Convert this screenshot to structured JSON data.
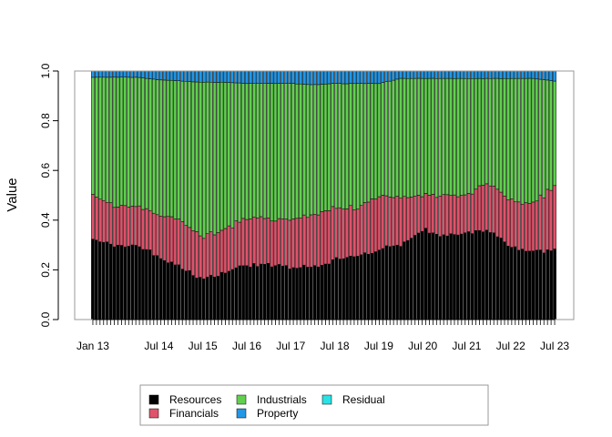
{
  "chart_data": {
    "type": "bar",
    "stacked": true,
    "ylabel": "Value",
    "ylim": [
      0,
      1
    ],
    "yticks": [
      "0.0",
      "0.2",
      "0.4",
      "0.6",
      "0.8",
      "1.0"
    ],
    "x_tick_labels": [
      "Jan 13",
      "Jul 14",
      "Jul 15",
      "Jul 16",
      "Jul 17",
      "Jul 18",
      "Jul 19",
      "Jul 20",
      "Jul 21",
      "Jul 22",
      "Jul 23"
    ],
    "grid": false,
    "legend_position": "bottom",
    "bar_count": 130,
    "series": [
      {
        "name": "Resources",
        "color": "#000000",
        "keypoints": [
          {
            "x": "Jan 13",
            "y": 0.33
          },
          {
            "x": "Jul 13",
            "y": 0.29
          },
          {
            "x": "Jan 14",
            "y": 0.3
          },
          {
            "x": "Jul 14",
            "y": 0.25
          },
          {
            "x": "Jan 15",
            "y": 0.21
          },
          {
            "x": "Jul 15",
            "y": 0.16
          },
          {
            "x": "Jan 16",
            "y": 0.19
          },
          {
            "x": "Jul 16",
            "y": 0.22
          },
          {
            "x": "Jan 17",
            "y": 0.22
          },
          {
            "x": "Jul 17",
            "y": 0.21
          },
          {
            "x": "Jan 18",
            "y": 0.21
          },
          {
            "x": "Jul 18",
            "y": 0.24
          },
          {
            "x": "Jan 19",
            "y": 0.26
          },
          {
            "x": "Jul 19",
            "y": 0.28
          },
          {
            "x": "Jan 20",
            "y": 0.3
          },
          {
            "x": "Jul 20",
            "y": 0.36
          },
          {
            "x": "Jan 21",
            "y": 0.34
          },
          {
            "x": "Jul 21",
            "y": 0.34
          },
          {
            "x": "Jan 22",
            "y": 0.36
          },
          {
            "x": "Jul 22",
            "y": 0.29
          },
          {
            "x": "Jan 23",
            "y": 0.27
          },
          {
            "x": "Jul 23",
            "y": 0.28
          }
        ]
      },
      {
        "name": "Financials",
        "color": "#DF536B",
        "keypoints": [
          {
            "x": "Jan 13",
            "y": 0.17
          },
          {
            "x": "Jul 13",
            "y": 0.16
          },
          {
            "x": "Jan 14",
            "y": 0.16
          },
          {
            "x": "Jul 14",
            "y": 0.17
          },
          {
            "x": "Jan 15",
            "y": 0.19
          },
          {
            "x": "Jul 15",
            "y": 0.17
          },
          {
            "x": "Jan 16",
            "y": 0.17
          },
          {
            "x": "Jul 16",
            "y": 0.19
          },
          {
            "x": "Jan 17",
            "y": 0.18
          },
          {
            "x": "Jul 17",
            "y": 0.19
          },
          {
            "x": "Jan 18",
            "y": 0.21
          },
          {
            "x": "Jul 18",
            "y": 0.21
          },
          {
            "x": "Jan 19",
            "y": 0.19
          },
          {
            "x": "Jul 19",
            "y": 0.22
          },
          {
            "x": "Jan 20",
            "y": 0.19
          },
          {
            "x": "Jul 20",
            "y": 0.14
          },
          {
            "x": "Jan 21",
            "y": 0.16
          },
          {
            "x": "Jul 21",
            "y": 0.16
          },
          {
            "x": "Jan 22",
            "y": 0.19
          },
          {
            "x": "Jul 22",
            "y": 0.19
          },
          {
            "x": "Jan 23",
            "y": 0.19
          },
          {
            "x": "Jul 23",
            "y": 0.26
          }
        ]
      },
      {
        "name": "Industrials",
        "color": "#61D04F",
        "keypoints": [
          {
            "x": "Jan 13",
            "y": 0.47
          },
          {
            "x": "Jul 13",
            "y": 0.52
          },
          {
            "x": "Jan 14",
            "y": 0.51
          },
          {
            "x": "Jul 14",
            "y": 0.54
          },
          {
            "x": "Jan 15",
            "y": 0.56
          },
          {
            "x": "Jul 15",
            "y": 0.62
          },
          {
            "x": "Jan 16",
            "y": 0.59
          },
          {
            "x": "Jul 16",
            "y": 0.54
          },
          {
            "x": "Jan 17",
            "y": 0.55
          },
          {
            "x": "Jul 17",
            "y": 0.55
          },
          {
            "x": "Jan 18",
            "y": 0.52
          },
          {
            "x": "Jul 18",
            "y": 0.5
          },
          {
            "x": "Jan 19",
            "y": 0.5
          },
          {
            "x": "Jul 19",
            "y": 0.45
          },
          {
            "x": "Jan 20",
            "y": 0.48
          },
          {
            "x": "Jul 20",
            "y": 0.47
          },
          {
            "x": "Jan 21",
            "y": 0.47
          },
          {
            "x": "Jul 21",
            "y": 0.47
          },
          {
            "x": "Jan 22",
            "y": 0.42
          },
          {
            "x": "Jul 22",
            "y": 0.49
          },
          {
            "x": "Jan 23",
            "y": 0.51
          },
          {
            "x": "Jul 23",
            "y": 0.42
          }
        ]
      },
      {
        "name": "Property",
        "color": "#2297E6",
        "keypoints": [
          {
            "x": "Jan 13",
            "y": 0.025
          },
          {
            "x": "Jul 13",
            "y": 0.025
          },
          {
            "x": "Jan 14",
            "y": 0.025
          },
          {
            "x": "Jul 14",
            "y": 0.035
          },
          {
            "x": "Jan 15",
            "y": 0.04
          },
          {
            "x": "Jul 15",
            "y": 0.045
          },
          {
            "x": "Jan 16",
            "y": 0.045
          },
          {
            "x": "Jul 16",
            "y": 0.05
          },
          {
            "x": "Jan 17",
            "y": 0.05
          },
          {
            "x": "Jul 17",
            "y": 0.05
          },
          {
            "x": "Jan 18",
            "y": 0.055
          },
          {
            "x": "Jul 18",
            "y": 0.05
          },
          {
            "x": "Jan 19",
            "y": 0.05
          },
          {
            "x": "Jul 19",
            "y": 0.05
          },
          {
            "x": "Jan 20",
            "y": 0.03
          },
          {
            "x": "Jul 20",
            "y": 0.03
          },
          {
            "x": "Jan 21",
            "y": 0.03
          },
          {
            "x": "Jul 21",
            "y": 0.03
          },
          {
            "x": "Jan 22",
            "y": 0.03
          },
          {
            "x": "Jul 22",
            "y": 0.03
          },
          {
            "x": "Jan 23",
            "y": 0.03
          },
          {
            "x": "Jul 23",
            "y": 0.04
          }
        ]
      },
      {
        "name": "Residual",
        "color": "#28E2E5",
        "keypoints": [
          {
            "x": "Jan 13",
            "y": 0.0
          },
          {
            "x": "Jul 23",
            "y": 0.0
          }
        ]
      }
    ]
  }
}
